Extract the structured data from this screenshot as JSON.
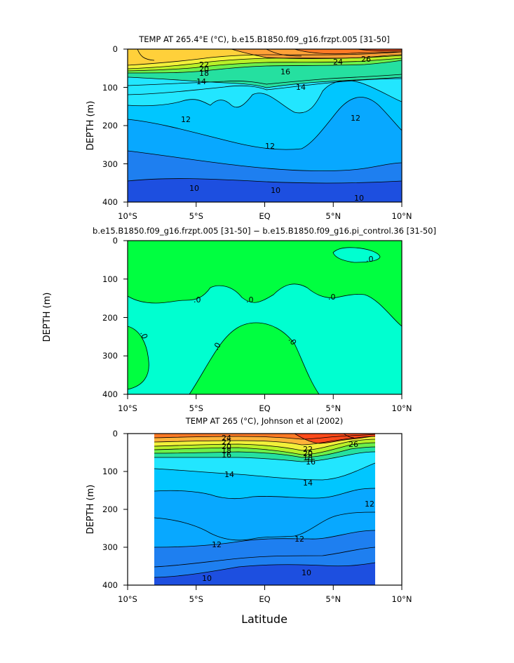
{
  "figure": {
    "x_axis_label": "Latitude",
    "colors": {
      "c10": "#1d4fe0",
      "c11": "#1e7ff0",
      "c12": "#08a8ff",
      "c13": "#00c6ff",
      "c14": "#22e6ff",
      "c16": "#25e0a0",
      "c18": "#6cf04a",
      "c19": "#b8f028",
      "c20": "#f2f03a",
      "c21": "#ffd03a",
      "c23": "#ffb43a",
      "c24": "#ffa238",
      "c26": "#ff7a25",
      "c27": "#ff4a1a",
      "neg": "#00ffd0",
      "pos": "#00ff40"
    }
  },
  "chart_data": [
    {
      "type": "contour",
      "title": "TEMP AT 265.4°E (°C), b.e15.B1850.f09_g16.frzpt.005 [31-50]",
      "ylabel": "DEPTH (m)",
      "xlabel": "",
      "xlim": [
        -10,
        10
      ],
      "ylim": [
        400,
        0
      ],
      "x_ticks": [
        "10°S",
        "5°S",
        "EQ",
        "5°N",
        "10°N"
      ],
      "y_ticks": [
        "0",
        "100",
        "200",
        "300",
        "400"
      ],
      "contour_labels": [
        "26",
        "24",
        "22",
        "20",
        "18",
        "16",
        "14",
        "12",
        "10"
      ]
    },
    {
      "type": "contour",
      "title": "b.e15.B1850.f09_g16.frzpt.005 [31-50] − b.e15.B1850.f09_g16.pi_control.36 [31-50]",
      "ylabel": "DEPTH (m)",
      "xlabel": "",
      "xlim": [
        -10,
        10
      ],
      "ylim": [
        400,
        0
      ],
      "x_ticks": [
        "10°S",
        "5°S",
        "EQ",
        "5°N",
        "10°N"
      ],
      "y_ticks": [
        "0",
        "100",
        "200",
        "300",
        "400"
      ],
      "contour_labels": [
        ".0"
      ]
    },
    {
      "type": "contour",
      "title": "TEMP AT 265 (°C), Johnson et al (2002)",
      "ylabel": "DEPTH (m)",
      "xlabel": "Latitude",
      "xlim": [
        -10,
        10
      ],
      "ylim": [
        400,
        0
      ],
      "data_xlim": [
        -8,
        8
      ],
      "x_ticks": [
        "10°S",
        "5°S",
        "EQ",
        "5°N",
        "10°N"
      ],
      "y_ticks": [
        "0",
        "100",
        "200",
        "300",
        "400"
      ],
      "contour_labels": [
        "26",
        "24",
        "22",
        "20",
        "18",
        "16",
        "14",
        "12",
        "10"
      ]
    }
  ]
}
